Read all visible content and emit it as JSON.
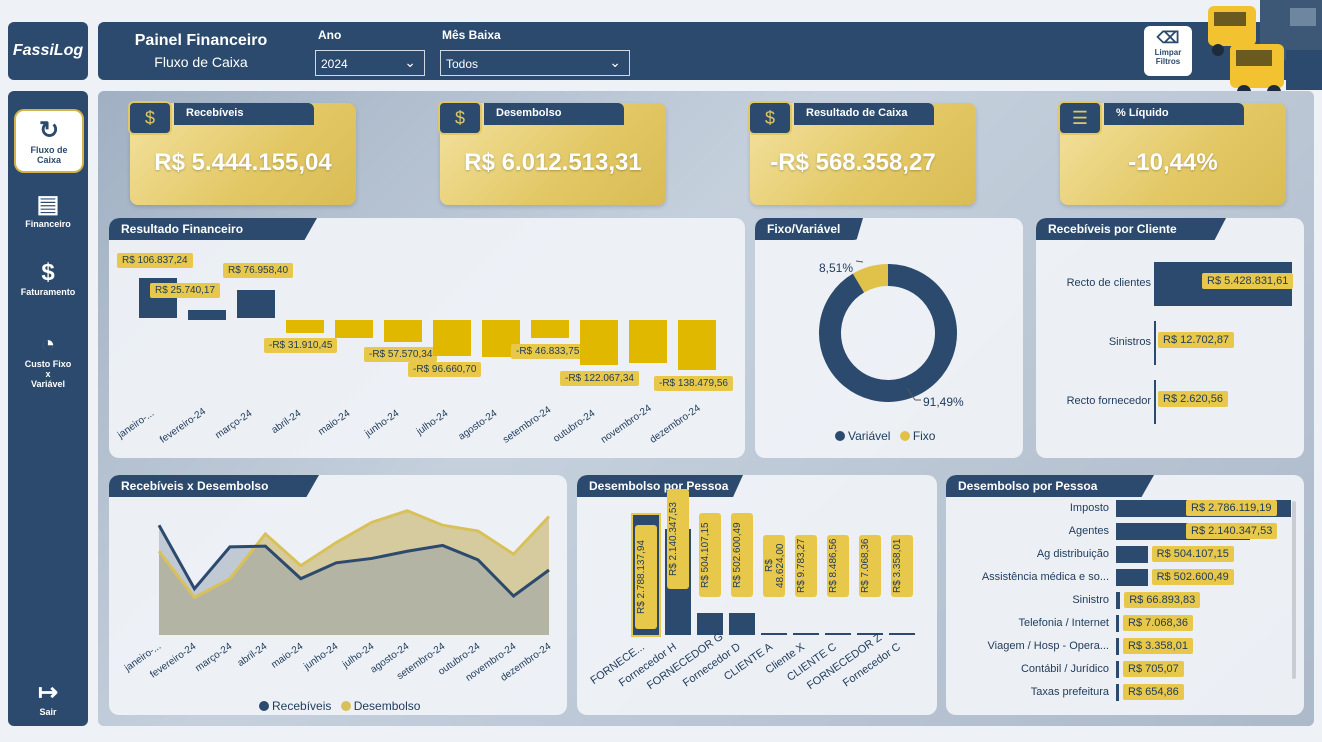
{
  "header": {
    "title": "Painel Financeiro",
    "subtitle": "Fluxo de Caixa",
    "filter_ano_label": "Ano",
    "filter_ano_value": "2024",
    "filter_mes_label": "Mês Baixa",
    "filter_mes_value": "Todos",
    "clear_label_1": "Limpar",
    "clear_label_2": "Filtros"
  },
  "logo": {
    "text": "FassiLog"
  },
  "sidebar": {
    "items": [
      {
        "label_1": "Fluxo de",
        "label_2": "Caixa",
        "icon": "cash-flow-icon"
      },
      {
        "label": "Financeiro",
        "icon": "invoice-icon"
      },
      {
        "label": "Faturamento",
        "icon": "hand-money-icon"
      },
      {
        "label_1": "Custo Fixo",
        "label_2": "x",
        "label_3": "Variável",
        "icon": "pie-money-icon"
      },
      {
        "label": "Sair",
        "icon": "exit-icon"
      }
    ]
  },
  "kpis": [
    {
      "label": "Recebíveis",
      "value": "R$ 5.444.155,04",
      "icon": "money-in-icon"
    },
    {
      "label": "Desembolso",
      "value": "R$ 6.012.513,31",
      "icon": "money-out-icon"
    },
    {
      "label": "Resultado de Caixa",
      "value": "-R$ 568.358,27",
      "icon": "money-bag-icon"
    },
    {
      "label": "% Líquido",
      "value": "-10,44%",
      "icon": "coins-icon"
    }
  ],
  "colors": {
    "navy": "#2b4a6d",
    "gold": "#e0b800",
    "gold_label": "#e8c84a"
  },
  "chart_data": [
    {
      "id": "resultado_financeiro",
      "type": "bar",
      "title": "Resultado Financeiro",
      "categories": [
        "janeiro-...",
        "fevereiro-24",
        "março-24",
        "abril-24",
        "maio-24",
        "junho-24",
        "julho-24",
        "agosto-24",
        "setembro-24",
        "outubro-24",
        "novembro-24",
        "dezembro-24"
      ],
      "values": [
        106837.24,
        25740.17,
        76958.4,
        -31910.45,
        -45000,
        -57570.34,
        -96660.7,
        -100000,
        -46833.75,
        -122067.34,
        -118000,
        -138479.56
      ],
      "labels": [
        "R$ 106.837,24",
        "R$ 25.740,17",
        "R$ 76.958,40",
        "-R$ 31.910,45",
        "",
        "-R$ 57.570,34",
        "-R$ 96.660,70",
        "",
        "-R$ 46.833,75",
        "-R$ 122.067,34",
        "",
        "-R$ 138.479,56"
      ]
    },
    {
      "id": "fixo_variavel",
      "type": "pie",
      "title": "Fixo/Variável",
      "series": [
        {
          "name": "Variável",
          "value": 91.49,
          "label": "91,49%",
          "color": "#2b4a6d"
        },
        {
          "name": "Fixo",
          "value": 8.51,
          "label": "8,51%",
          "color": "#e0c24a"
        }
      ]
    },
    {
      "id": "recebiveis_cliente",
      "type": "bar",
      "title": "Recebíveis por Cliente",
      "categories": [
        "Recto de clientes",
        "Sinistros",
        "Recto fornecedor"
      ],
      "values": [
        5428831.61,
        12702.87,
        2620.56
      ],
      "labels": [
        "R$ 5.428.831,61",
        "R$ 12.702,87",
        "R$ 2.620,56"
      ]
    },
    {
      "id": "recebiveis_desembolso",
      "type": "area",
      "title": "Recebíveis x Desembolso",
      "categories": [
        "janeiro-...",
        "fevereiro-24",
        "março-24",
        "abril-24",
        "maio-24",
        "junho-24",
        "julho-24",
        "agosto-24",
        "setembro-24",
        "outubro-24",
        "novembro-24",
        "dezembro-24"
      ],
      "series": [
        {
          "name": "Recebíveis",
          "color": "#2b4a6d",
          "values": [
            760,
            320,
            610,
            615,
            390,
            500,
            530,
            580,
            620,
            520,
            270,
            450
          ]
        },
        {
          "name": "Desembolso",
          "color": "#d9c15a",
          "values": [
            580,
            260,
            390,
            700,
            480,
            640,
            780,
            860,
            760,
            720,
            560,
            820
          ]
        }
      ]
    },
    {
      "id": "desembolso_pessoa_v",
      "type": "bar",
      "title": "Desembolso por Pessoa",
      "categories": [
        "FORNECE...",
        "Fornecedor H",
        "FORNECEDOR G",
        "Fornecedor D",
        "CLIENTE A",
        "Cliente X",
        "CLIENTE C",
        "FORNECEDOR Z",
        "Fornecedor C"
      ],
      "values": [
        2788137.94,
        2140347.53,
        504107.15,
        502600.49,
        48624.0,
        9783.27,
        8486.56,
        7068.36,
        3358.01
      ],
      "labels": [
        "R$ 2.788.137,94",
        "R$ 2.140.347,53",
        "R$ 504.107,15",
        "R$ 502.600,49",
        "R$ 48.624,00",
        "R$ 9.783,27",
        "R$ 8.486,56",
        "R$ 7.068,36",
        "R$ 3.358,01"
      ]
    },
    {
      "id": "desembolso_pessoa_h",
      "type": "bar",
      "title": "Desembolso por Pessoa",
      "categories": [
        "Imposto",
        "Agentes",
        "Ag distribuição",
        "Assistência médica e so...",
        "Sinistro",
        "Telefonia / Internet",
        "Viagem / Hosp - Opera...",
        "Contábil / Jurídico",
        "Taxas prefeitura"
      ],
      "values": [
        2786119.19,
        2140347.53,
        504107.15,
        502600.49,
        66893.83,
        7068.36,
        3358.01,
        705.07,
        654.86
      ],
      "labels": [
        "R$ 2.786.119,19",
        "R$ 2.140.347,53",
        "R$ 504.107,15",
        "R$ 502.600,49",
        "R$ 66.893,83",
        "R$ 7.068,36",
        "R$ 3.358,01",
        "R$ 705,07",
        "R$ 654,86"
      ]
    }
  ]
}
